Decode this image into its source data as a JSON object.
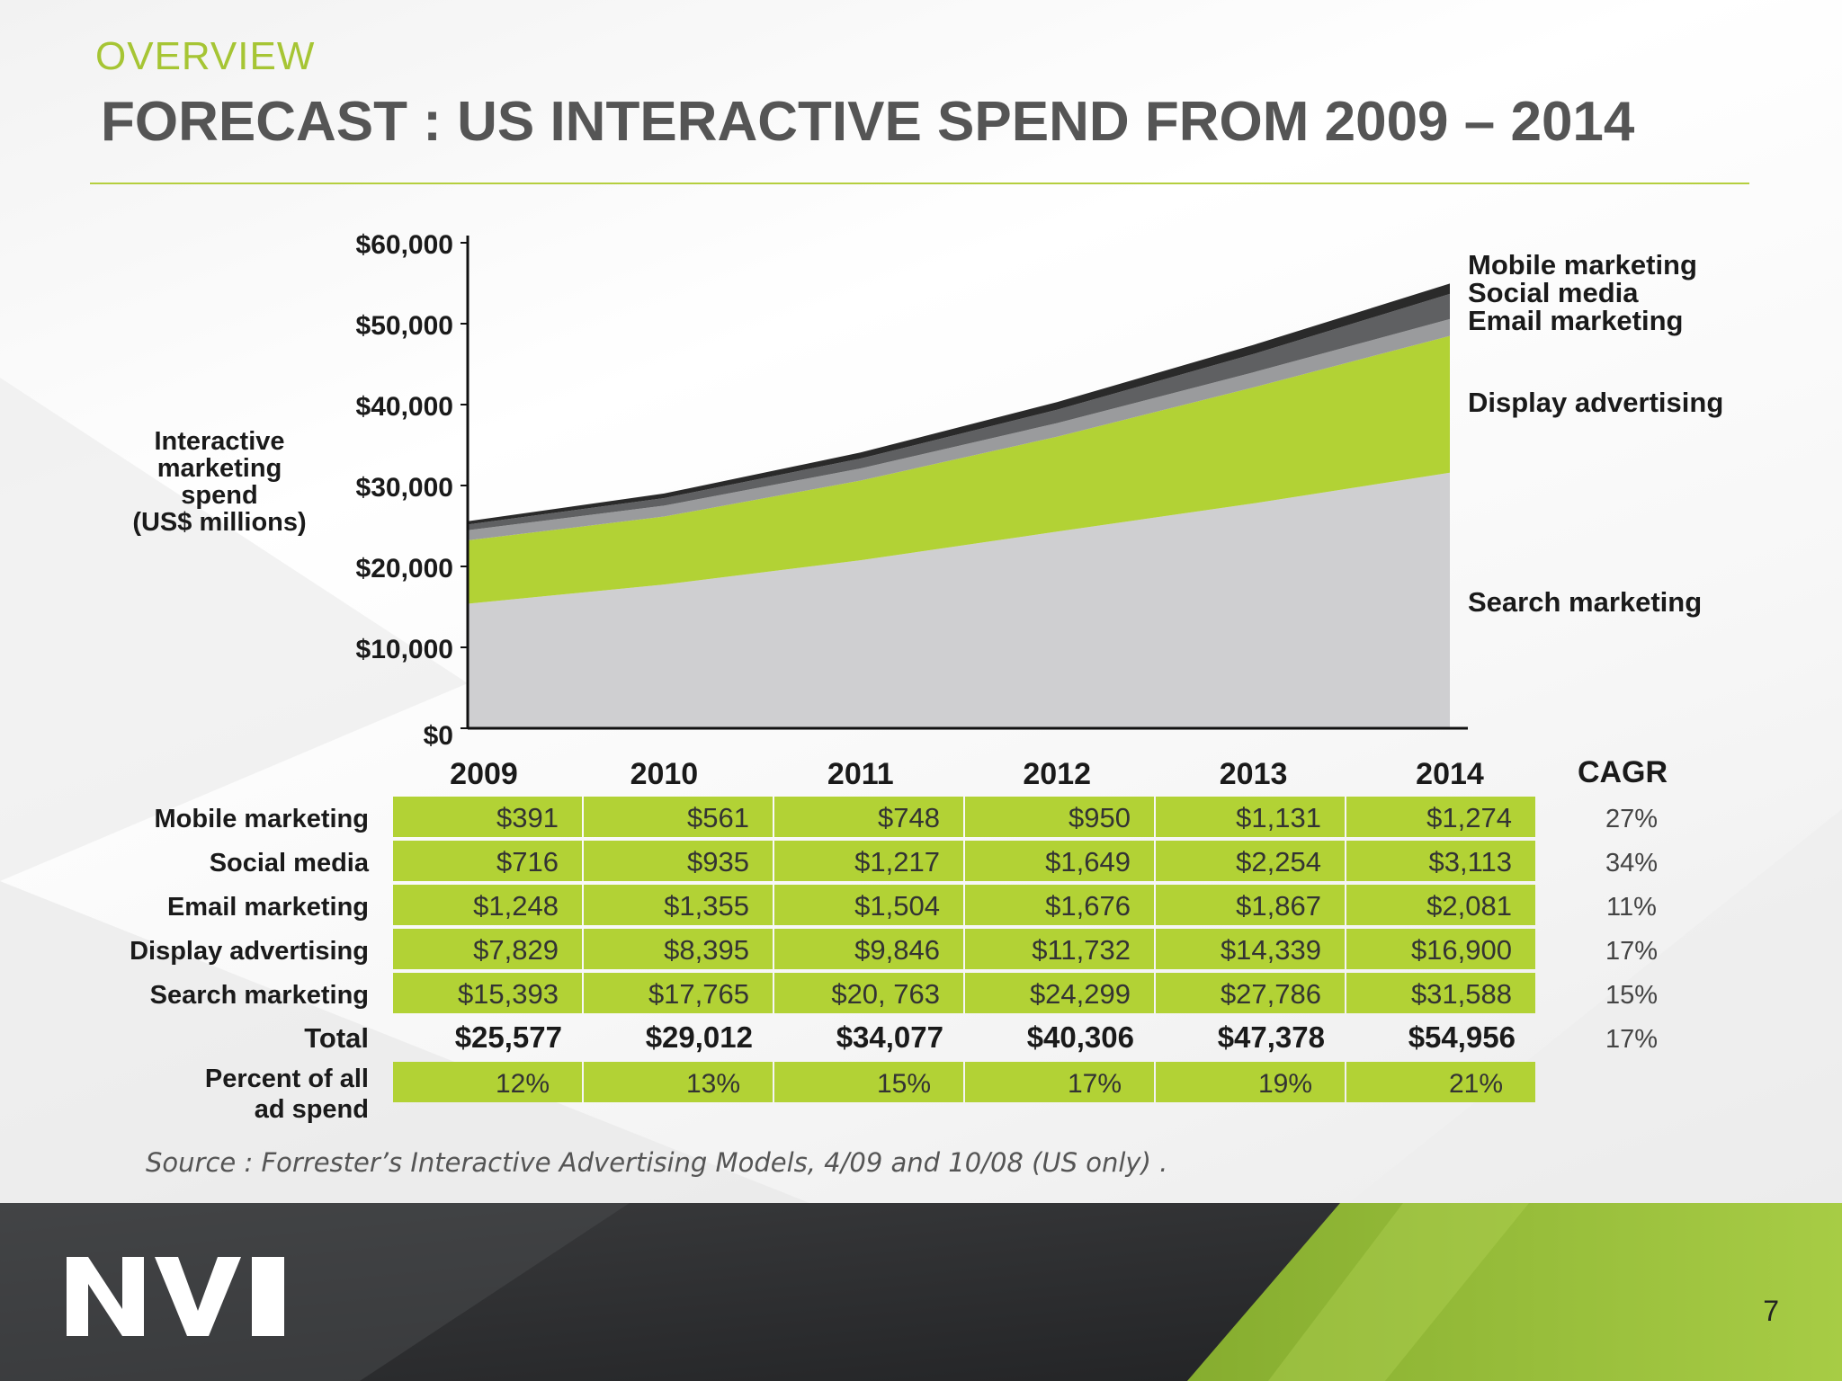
{
  "header": {
    "kicker": "OVERVIEW",
    "title": "FORECAST : US INTERACTIVE SPEND FROM 2009 – 2014"
  },
  "chart_data": {
    "type": "area",
    "stacked": true,
    "ylabel": "Interactive marketing spend (US$ millions)",
    "ylim": [
      0,
      60000
    ],
    "yticks": [
      "$0",
      "$10,000",
      "$20,000",
      "$30,000",
      "$40,000",
      "$50,000",
      "$60,000"
    ],
    "ytick_values": [
      0,
      10000,
      20000,
      30000,
      40000,
      50000,
      60000
    ],
    "x": [
      "2009",
      "2010",
      "2011",
      "2012",
      "2013",
      "2014"
    ],
    "series": [
      {
        "name": "Search marketing",
        "values": [
          15393,
          17765,
          20763,
          24299,
          27786,
          31588
        ],
        "color": "#cfcfd1",
        "labels": [
          "$15,393",
          "$17,765",
          "$20, 763",
          "$24,299",
          "$27,786",
          "$31,588"
        ],
        "cagr": "15%"
      },
      {
        "name": "Display advertising",
        "values": [
          7829,
          8395,
          9846,
          11732,
          14339,
          16900
        ],
        "color": "#b2d235",
        "labels": [
          "$7,829",
          "$8,395",
          "$9,846",
          "$11,732",
          "$14,339",
          "$16,900"
        ],
        "cagr": "17%"
      },
      {
        "name": "Email marketing",
        "values": [
          1248,
          1355,
          1504,
          1676,
          1867,
          2081
        ],
        "color": "#9a9b9d",
        "labels": [
          "$1,248",
          "$1,355",
          "$1,504",
          "$1,676",
          "$1,867",
          "$2,081"
        ],
        "cagr": "11%"
      },
      {
        "name": "Social media",
        "values": [
          716,
          935,
          1217,
          1649,
          2254,
          3113
        ],
        "color": "#5f6062",
        "labels": [
          "$716",
          "$935",
          "$1,217",
          "$1,649",
          "$2,254",
          "$3,113"
        ],
        "cagr": "34%"
      },
      {
        "name": "Mobile marketing",
        "values": [
          391,
          561,
          748,
          950,
          1131,
          1274
        ],
        "color": "#2a2a2a",
        "labels": [
          "$391",
          "$561",
          "$748",
          "$950",
          "$1,131",
          "$1,274"
        ],
        "cagr": "27%"
      }
    ],
    "legend_placement": "right"
  },
  "table": {
    "cagr_header": "CAGR",
    "row_order": [
      "Mobile marketing",
      "Social media",
      "Email marketing",
      "Display advertising",
      "Search marketing"
    ],
    "total": {
      "label": "Total",
      "values": [
        "$25,577",
        "$29,012",
        "$34,077",
        "$40,306",
        "$47,378",
        "$54,956"
      ],
      "cagr": "17%"
    },
    "percent": {
      "label_line1": "Percent of all",
      "label_line2": "ad spend",
      "values": [
        "12%",
        "13%",
        "15%",
        "17%",
        "19%",
        "21%"
      ]
    },
    "cell_color": "#b2d235"
  },
  "source": "Source : Forrester’s Interactive Advertising Models, 4/09 and 10/08 (US only) .",
  "footer": {
    "logo_text": "NVI",
    "page_number": "7"
  },
  "colors": {
    "accent": "#a6c534",
    "title": "#555555",
    "footer_dark": "#2e2f31",
    "footer_green": "#9bc23a"
  }
}
